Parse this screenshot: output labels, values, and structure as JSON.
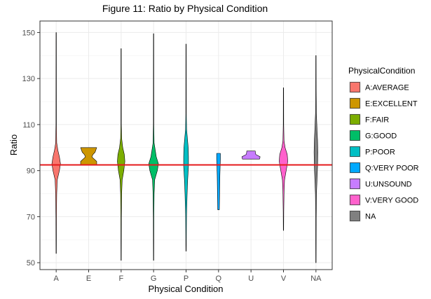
{
  "chart_data": {
    "type": "violin",
    "title": "Figure 11: Ratio by Physical Condition",
    "xlabel": "Physical Condition",
    "ylabel": "Ratio",
    "ylim": [
      47,
      155
    ],
    "yticks": [
      50,
      70,
      90,
      110,
      130,
      150
    ],
    "grid": true,
    "legend_position": "right",
    "legend_title": "PhysicalCondition",
    "reference_line": {
      "y": 92.5,
      "color": "#e41a1c"
    },
    "series": [
      {
        "category": "A",
        "name": "A:AVERAGE",
        "color": "#F8766D",
        "min": 54,
        "max": 150,
        "dens": [
          [
            54,
            0.3
          ],
          [
            70,
            0.5
          ],
          [
            80,
            1
          ],
          [
            86,
            2
          ],
          [
            90,
            6
          ],
          [
            93,
            8
          ],
          [
            96,
            6
          ],
          [
            99,
            3
          ],
          [
            102,
            1
          ],
          [
            110,
            0.4
          ],
          [
            150,
            0.3
          ]
        ]
      },
      {
        "category": "E",
        "name": "E:EXCELLENT",
        "color": "#CD9600",
        "min": 92.5,
        "max": 100,
        "dens": [
          [
            92.5,
            15
          ],
          [
            94,
            15
          ],
          [
            95.5,
            8
          ],
          [
            96,
            6
          ],
          [
            97,
            8
          ],
          [
            98,
            12
          ],
          [
            100,
            15
          ]
        ]
      },
      {
        "category": "F",
        "name": "F:FAIR",
        "color": "#7CAE00",
        "min": 51,
        "max": 143,
        "dens": [
          [
            51,
            0.3
          ],
          [
            70,
            0.5
          ],
          [
            80,
            1
          ],
          [
            86,
            2
          ],
          [
            90,
            5
          ],
          [
            94,
            7
          ],
          [
            97,
            6
          ],
          [
            100,
            3
          ],
          [
            104,
            1
          ],
          [
            110,
            0.4
          ],
          [
            143,
            0.3
          ]
        ]
      },
      {
        "category": "G",
        "name": "G:GOOD",
        "color": "#00BE67",
        "min": 51,
        "max": 149.5,
        "dens": [
          [
            51,
            0.3
          ],
          [
            70,
            0.5
          ],
          [
            80,
            1
          ],
          [
            86,
            2
          ],
          [
            90,
            7
          ],
          [
            93,
            9
          ],
          [
            96,
            5
          ],
          [
            99,
            3
          ],
          [
            102,
            1
          ],
          [
            110,
            0.4
          ],
          [
            149.5,
            0.3
          ]
        ]
      },
      {
        "category": "P",
        "name": "P:POOR",
        "color": "#00BFC4",
        "min": 55,
        "max": 145,
        "dens": [
          [
            55,
            0.3
          ],
          [
            70,
            0.8
          ],
          [
            80,
            2
          ],
          [
            86,
            3
          ],
          [
            92,
            4.5
          ],
          [
            96,
            4.5
          ],
          [
            100,
            4
          ],
          [
            104,
            2.5
          ],
          [
            108,
            1
          ],
          [
            115,
            0.4
          ],
          [
            145,
            0.3
          ]
        ]
      },
      {
        "category": "Q",
        "name": "Q:VERY POOR",
        "color": "#00A9FF",
        "min": 73,
        "max": 97.5,
        "dens": [
          [
            73,
            1.5
          ],
          [
            80,
            2
          ],
          [
            88,
            2.5
          ],
          [
            92,
            3
          ],
          [
            95,
            3.5
          ],
          [
            97,
            3.5
          ],
          [
            97.5,
            3.5
          ]
        ]
      },
      {
        "category": "U",
        "name": "U:UNSOUND",
        "color": "#C77CFF",
        "min": 95,
        "max": 98.5,
        "dens": [
          [
            95,
            16
          ],
          [
            96,
            17
          ],
          [
            97,
            9
          ],
          [
            98,
            8
          ],
          [
            98.5,
            8
          ]
        ]
      },
      {
        "category": "V",
        "name": "V:VERY GOOD",
        "color": "#FF61CC",
        "min": 64,
        "max": 126,
        "dens": [
          [
            64,
            0.3
          ],
          [
            72,
            0.5
          ],
          [
            80,
            1
          ],
          [
            86,
            2
          ],
          [
            90,
            5
          ],
          [
            94,
            8
          ],
          [
            97,
            7
          ],
          [
            100,
            3
          ],
          [
            103,
            1
          ],
          [
            110,
            0.4
          ],
          [
            126,
            0.3
          ]
        ]
      },
      {
        "category": "NA",
        "name": "NA",
        "color": "#808080",
        "min": 50,
        "max": 140,
        "dens": [
          [
            50,
            0.3
          ],
          [
            70,
            0.5
          ],
          [
            80,
            1
          ],
          [
            86,
            2
          ],
          [
            92,
            3
          ],
          [
            98,
            3.5
          ],
          [
            103,
            3
          ],
          [
            108,
            2
          ],
          [
            115,
            0.8
          ],
          [
            125,
            0.4
          ],
          [
            140,
            0.3
          ]
        ]
      }
    ]
  }
}
